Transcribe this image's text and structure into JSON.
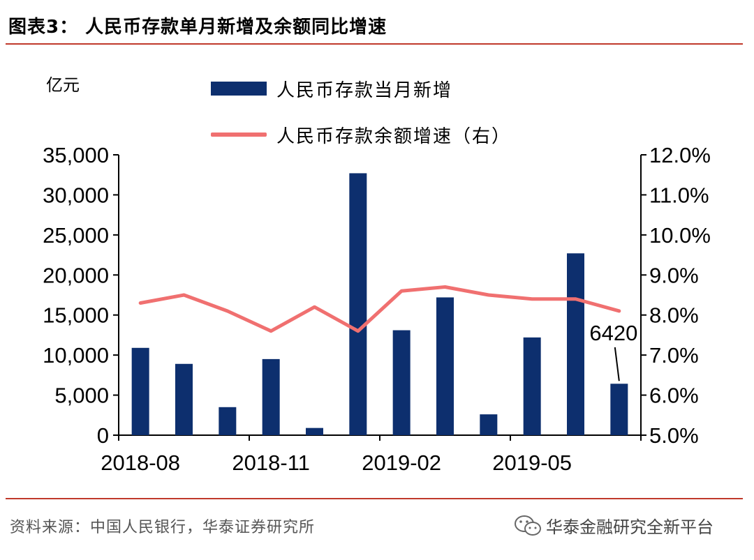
{
  "figure": {
    "title": "图表3： 人民币存款单月新增及余额同比增速",
    "unit_label": "亿元",
    "source": "资料来源：中国人民银行，华泰证券研究所",
    "watermark": "华泰金融研究全新平台",
    "watermark_icon": "wechat-icon",
    "colors": {
      "bar": "#0d2f6e",
      "line": "#f07070",
      "rule": "#c0392b"
    }
  },
  "chart_data": {
    "type": "bar",
    "categories": [
      "2018-08",
      "2018-09",
      "2018-10",
      "2018-11",
      "2018-12",
      "2019-01",
      "2019-02",
      "2019-03",
      "2019-04",
      "2019-05",
      "2019-06",
      "2019-07"
    ],
    "x_tick_labels": [
      "2018-08",
      "2018-11",
      "2019-02",
      "2019-05"
    ],
    "series": [
      {
        "name": "人民币存款当月新增",
        "type": "bar",
        "axis": "left",
        "values": [
          10900,
          8900,
          3500,
          9500,
          900,
          32700,
          13100,
          17200,
          2600,
          12200,
          22700,
          6420
        ]
      },
      {
        "name": "人民币存款余额增速（右）",
        "type": "line",
        "axis": "right",
        "values": [
          8.3,
          8.5,
          8.1,
          7.6,
          8.2,
          7.6,
          8.6,
          8.7,
          8.5,
          8.4,
          8.4,
          8.1
        ]
      }
    ],
    "left_axis": {
      "min": 0,
      "max": 35000,
      "ticks": [
        "0",
        "5,000",
        "10,000",
        "15,000",
        "20,000",
        "25,000",
        "30,000",
        "35,000"
      ]
    },
    "right_axis": {
      "min": 5.0,
      "max": 12.0,
      "ticks": [
        "5.0%",
        "6.0%",
        "7.0%",
        "8.0%",
        "9.0%",
        "10.0%",
        "11.0%",
        "12.0%"
      ]
    },
    "annotation": {
      "text": "6420",
      "category": "2019-07"
    },
    "legend_position": "top-center",
    "grid": false
  }
}
